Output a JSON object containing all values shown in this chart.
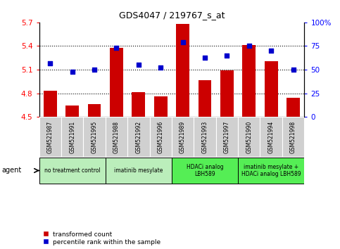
{
  "title": "GDS4047 / 219767_s_at",
  "samples": [
    "GSM521987",
    "GSM521991",
    "GSM521995",
    "GSM521988",
    "GSM521992",
    "GSM521996",
    "GSM521989",
    "GSM521993",
    "GSM521997",
    "GSM521990",
    "GSM521994",
    "GSM521998"
  ],
  "bar_values": [
    4.83,
    4.65,
    4.66,
    5.38,
    4.82,
    4.76,
    5.68,
    4.97,
    5.09,
    5.41,
    5.21,
    4.74
  ],
  "dot_values": [
    57,
    48,
    50,
    73,
    55,
    52,
    79,
    63,
    65,
    75,
    70,
    50
  ],
  "bar_color": "#cc0000",
  "dot_color": "#0000cc",
  "ylim_left": [
    4.5,
    5.7
  ],
  "ylim_right": [
    0,
    100
  ],
  "yticks_left": [
    4.5,
    4.8,
    5.1,
    5.4,
    5.7
  ],
  "ytick_labels_left": [
    "4.5",
    "4.8",
    "5.1",
    "5.4",
    "5.7"
  ],
  "yticks_right": [
    0,
    25,
    50,
    75,
    100
  ],
  "ytick_labels_right": [
    "0",
    "25",
    "50",
    "75",
    "100%"
  ],
  "hlines": [
    4.8,
    5.1,
    5.4
  ],
  "groups": [
    {
      "label": "no treatment control",
      "start": 0,
      "end": 3,
      "color": "#bbeebb"
    },
    {
      "label": "imatinib mesylate",
      "start": 3,
      "end": 6,
      "color": "#bbeebb"
    },
    {
      "label": "HDACi analog\nLBH589",
      "start": 6,
      "end": 9,
      "color": "#55ee55"
    },
    {
      "label": "imatinib mesylate +\nHDACi analog LBH589",
      "start": 9,
      "end": 12,
      "color": "#55ee55"
    }
  ],
  "legend_bar_label": "transformed count",
  "legend_dot_label": "percentile rank within the sample",
  "agent_label": "agent",
  "bar_base": 4.5,
  "bg_color": "#d0d0d0"
}
